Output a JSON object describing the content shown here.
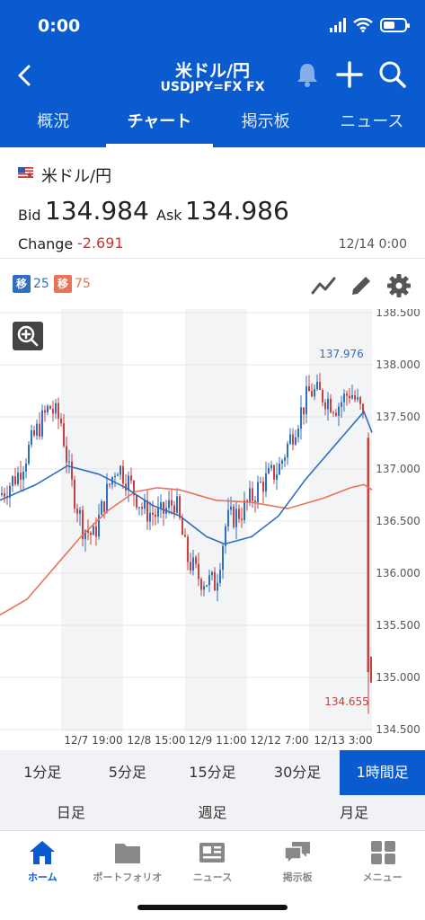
{
  "status_bar": {
    "time": "0:00"
  },
  "header": {
    "title": "米ドル/円",
    "subtitle": "USDJPY=FX FX"
  },
  "tabs": [
    {
      "label": "概況",
      "active": false
    },
    {
      "label": "チャート",
      "active": true
    },
    {
      "label": "掲示板",
      "active": false
    },
    {
      "label": "ニュース",
      "active": false
    }
  ],
  "quote": {
    "pair_name": "米ドル/円",
    "bid_label": "Bid",
    "bid_value": "134.984",
    "ask_label": "Ask",
    "ask_value": "134.986",
    "change_label": "Change",
    "change_value": "-2.691",
    "timestamp": "12/14 0:00"
  },
  "indicators": [
    {
      "box": "移",
      "period": "25",
      "color": "#2f6fc0"
    },
    {
      "box": "移",
      "period": "75",
      "color": "#e8735a"
    }
  ],
  "chart_data": {
    "type": "candlestick",
    "y_ticks": [
      "138.500",
      "138.000",
      "137.500",
      "137.000",
      "136.500",
      "136.000",
      "135.500",
      "135.000",
      "134.500"
    ],
    "ylim": [
      134.5,
      138.5
    ],
    "x_labels": [
      "12/7 19:00",
      "12/8 15:00",
      "12/9 11:00",
      "12/12 7:00",
      "12/13 3:00"
    ],
    "annotations": {
      "high": "137.976",
      "low": "134.655"
    },
    "colors": {
      "up": "#2f6fc0",
      "down": "#c94040",
      "ma25": "#2f6fc0",
      "ma75": "#e8735a"
    },
    "grid": true,
    "ma25_approx": [
      [
        0,
        136.7
      ],
      [
        40,
        136.85
      ],
      [
        75,
        137.03
      ],
      [
        110,
        136.95
      ],
      [
        140,
        136.82
      ],
      [
        170,
        136.65
      ],
      [
        200,
        136.55
      ],
      [
        230,
        136.35
      ],
      [
        250,
        136.28
      ],
      [
        280,
        136.35
      ],
      [
        310,
        136.55
      ],
      [
        340,
        136.9
      ],
      [
        370,
        137.2
      ],
      [
        395,
        137.45
      ],
      [
        405,
        137.55
      ],
      [
        414,
        137.35
      ]
    ],
    "ma75_approx": [
      [
        0,
        135.6
      ],
      [
        30,
        135.75
      ],
      [
        60,
        136.05
      ],
      [
        90,
        136.35
      ],
      [
        120,
        136.6
      ],
      [
        150,
        136.78
      ],
      [
        175,
        136.82
      ],
      [
        200,
        136.8
      ],
      [
        240,
        136.7
      ],
      [
        280,
        136.68
      ],
      [
        320,
        136.62
      ],
      [
        360,
        136.72
      ],
      [
        390,
        136.82
      ],
      [
        405,
        136.85
      ],
      [
        414,
        136.8
      ]
    ]
  },
  "intervals": [
    {
      "label": "1分足",
      "active": false
    },
    {
      "label": "5分足",
      "active": false
    },
    {
      "label": "15分足",
      "active": false
    },
    {
      "label": "30分足",
      "active": false
    },
    {
      "label": "1時間足",
      "active": true
    }
  ],
  "periods": [
    "日足",
    "週足",
    "月足"
  ],
  "bottom_nav": [
    {
      "label": "ホーム",
      "icon": "home-icon",
      "active": true
    },
    {
      "label": "ポートフォリオ",
      "icon": "folder-icon",
      "active": false
    },
    {
      "label": "ニュース",
      "icon": "newspaper-icon",
      "active": false
    },
    {
      "label": "掲示板",
      "icon": "chat-icon",
      "active": false
    },
    {
      "label": "メニュー",
      "icon": "grid-icon",
      "active": false
    }
  ]
}
